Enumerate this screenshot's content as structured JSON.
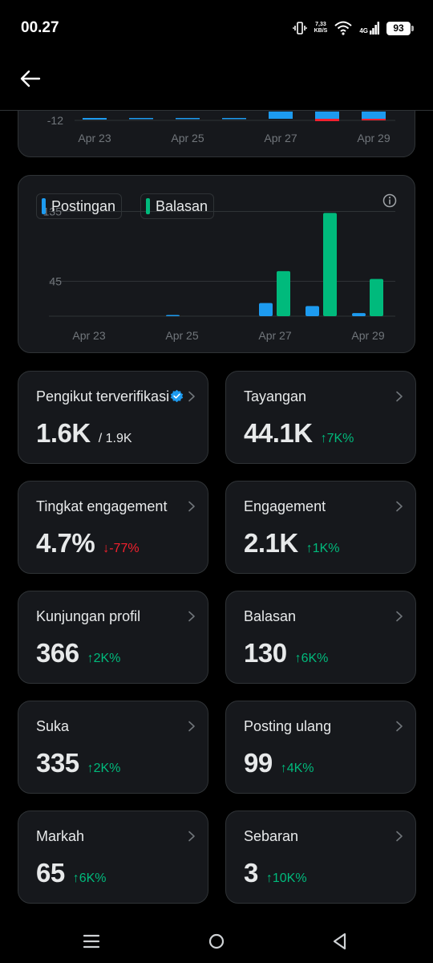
{
  "status_bar": {
    "time": "00.27",
    "speed_value": "7,33",
    "speed_unit": "KB/S",
    "network": "4G",
    "battery": "93"
  },
  "top_chart": {
    "y_tick": "-12",
    "x_ticks": [
      "Apr 23",
      "Apr 25",
      "Apr 27",
      "Apr 29"
    ]
  },
  "chart_data": {
    "type": "bar",
    "categories": [
      "Apr 23",
      "Apr 24",
      "Apr 25",
      "Apr 26",
      "Apr 27",
      "Apr 28",
      "Apr 29"
    ],
    "x_ticks": [
      "Apr 23",
      "Apr 25",
      "Apr 27",
      "Apr 29"
    ],
    "y_ticks": [
      "135",
      "45"
    ],
    "ylim": [
      0,
      150
    ],
    "series": [
      {
        "name": "Postingan",
        "color": "#1d9bf0",
        "values": [
          0,
          0,
          1,
          0,
          17,
          13,
          4
        ]
      },
      {
        "name": "Balasan",
        "color": "#00ba7c",
        "values": [
          0,
          0,
          0,
          0,
          58,
          133,
          48
        ]
      }
    ],
    "grid": true,
    "legend_position": "top-left"
  },
  "stats": [
    {
      "label": "Pengikut terverifikasi",
      "value": "1.6K",
      "sub": "/ 1.9K",
      "change": "",
      "direction": "",
      "verified": true
    },
    {
      "label": "Tayangan",
      "value": "44.1K",
      "sub": "",
      "change": "7K%",
      "direction": "up"
    },
    {
      "label": "Tingkat engagement",
      "value": "4.7%",
      "sub": "",
      "change": "-77%",
      "direction": "down"
    },
    {
      "label": "Engagement",
      "value": "2.1K",
      "sub": "",
      "change": "1K%",
      "direction": "up"
    },
    {
      "label": "Kunjungan profil",
      "value": "366",
      "sub": "",
      "change": "2K%",
      "direction": "up"
    },
    {
      "label": "Balasan",
      "value": "130",
      "sub": "",
      "change": "6K%",
      "direction": "up"
    },
    {
      "label": "Suka",
      "value": "335",
      "sub": "",
      "change": "2K%",
      "direction": "up"
    },
    {
      "label": "Posting ulang",
      "value": "99",
      "sub": "",
      "change": "4K%",
      "direction": "up"
    },
    {
      "label": "Markah",
      "value": "65",
      "sub": "",
      "change": "6K%",
      "direction": "up"
    },
    {
      "label": "Sebaran",
      "value": "3",
      "sub": "",
      "change": "10K%",
      "direction": "up"
    }
  ],
  "colors": {
    "up": "#00ba7c",
    "down": "#f4212e",
    "verified": "#1d9bf0",
    "card": "#16181c",
    "border": "#2f3336"
  },
  "icons": [
    "back-arrow-icon",
    "info-icon",
    "chevron-right-icon",
    "verified-badge-icon",
    "menu-icon",
    "home-circle-icon",
    "back-triangle-icon"
  ]
}
